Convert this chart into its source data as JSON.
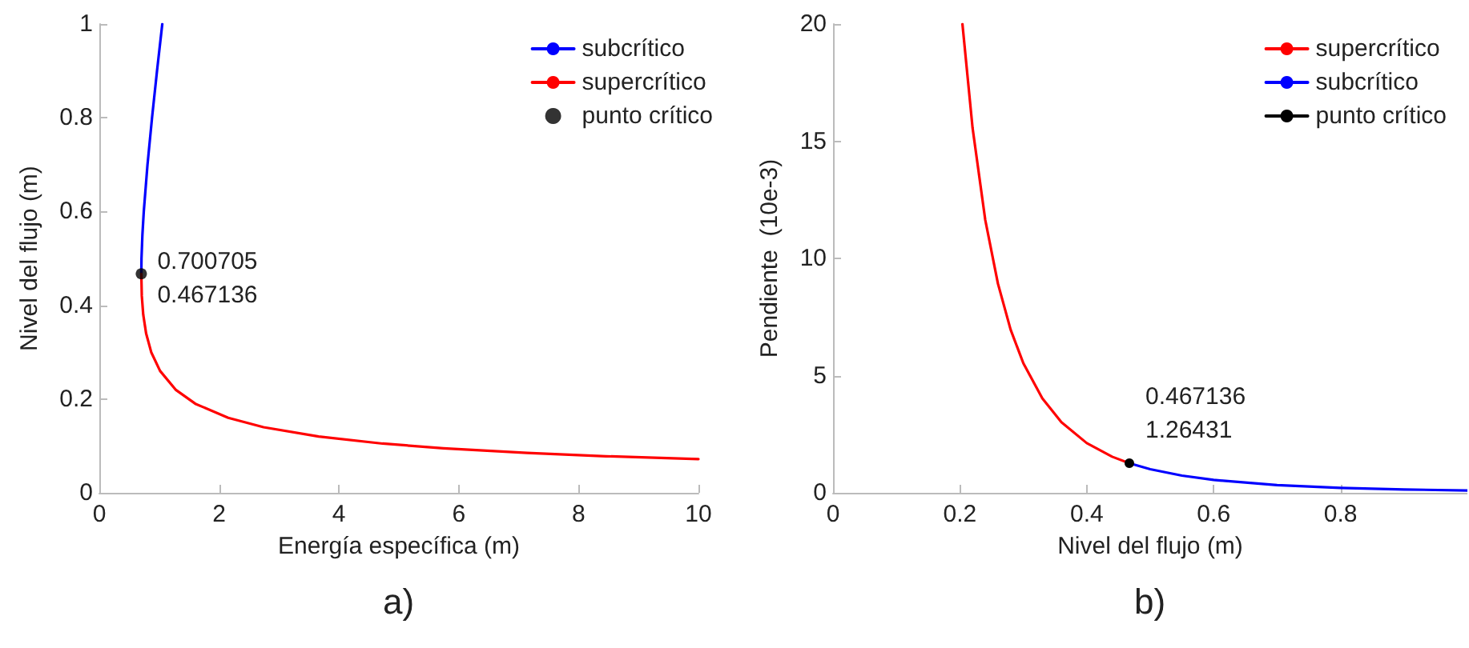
{
  "chart_data": [
    {
      "type": "line",
      "xlabel": "Energía específica (m)",
      "ylabel": "Nivel del flujo (m)",
      "xlim": [
        0,
        10
      ],
      "ylim": [
        0,
        1
      ],
      "xticks": [
        0,
        2,
        4,
        6,
        8,
        10
      ],
      "yticks": [
        0,
        0.2,
        0.4,
        0.6,
        0.8,
        1
      ],
      "legend": "top right",
      "series": [
        {
          "name": "subcrítico",
          "color": "#0000ff",
          "x": [
            0.701,
            0.704,
            0.719,
            0.742,
            0.804,
            0.88,
            0.963,
            1.051
          ],
          "values": [
            0.467,
            0.5,
            0.55,
            0.6,
            0.7,
            0.8,
            0.9,
            1.0
          ]
        },
        {
          "name": "supercrítico",
          "color": "#ff0000",
          "x": [
            0.701,
            0.709,
            0.733,
            0.781,
            0.866,
            1.014,
            1.273,
            1.602,
            2.151,
            2.741,
            3.66,
            4.728,
            5.743,
            7.14,
            8.456,
            10
          ],
          "values": [
            0.467,
            0.42,
            0.38,
            0.34,
            0.3,
            0.26,
            0.22,
            0.19,
            0.16,
            0.14,
            0.12,
            0.105,
            0.095,
            0.085,
            0.078,
            0.072
          ]
        },
        {
          "name": "punto crítico",
          "type": "scatter",
          "marker": "circle",
          "color": "#000000",
          "x": [
            0.700705
          ],
          "values": [
            0.467136
          ]
        }
      ],
      "annotations": [
        {
          "text": "0.700705\n0.467136",
          "x": 0.700705,
          "y": 0.467136
        },
        "a)"
      ]
    },
    {
      "type": "line",
      "xlabel": "Nivel del flujo (m)",
      "ylabel": "Pendiente  (10e-3)",
      "xlim": [
        0,
        1
      ],
      "ylim": [
        0,
        20
      ],
      "xticks": [
        0,
        0.2,
        0.4,
        0.6,
        0.8
      ],
      "yticks": [
        0,
        5,
        10,
        15,
        20
      ],
      "legend": "top right",
      "series": [
        {
          "name": "supercrítico",
          "color": "#ff0000",
          "x": [
            0.204,
            0.22,
            0.24,
            0.26,
            0.28,
            0.3,
            0.33,
            0.36,
            0.4,
            0.44,
            0.467
          ],
          "values": [
            20,
            15.56,
            11.64,
            8.92,
            6.96,
            5.53,
            4.03,
            3.01,
            2.12,
            1.54,
            1.264
          ]
        },
        {
          "name": "subcrítico",
          "color": "#0000ff",
          "x": [
            0.467,
            0.5,
            0.55,
            0.6,
            0.7,
            0.8,
            0.9,
            1.0
          ],
          "values": [
            1.264,
            1.008,
            0.734,
            0.549,
            0.328,
            0.21,
            0.142,
            0.1
          ]
        },
        {
          "name": "punto crítico",
          "marker": "circle",
          "color": "#000000",
          "x": [
            0.467136
          ],
          "values": [
            1.26431
          ]
        }
      ],
      "annotations": [
        {
          "text": "0.467136\n1.26431",
          "x": 0.467136,
          "y": 1.26431
        },
        "b)"
      ]
    }
  ]
}
